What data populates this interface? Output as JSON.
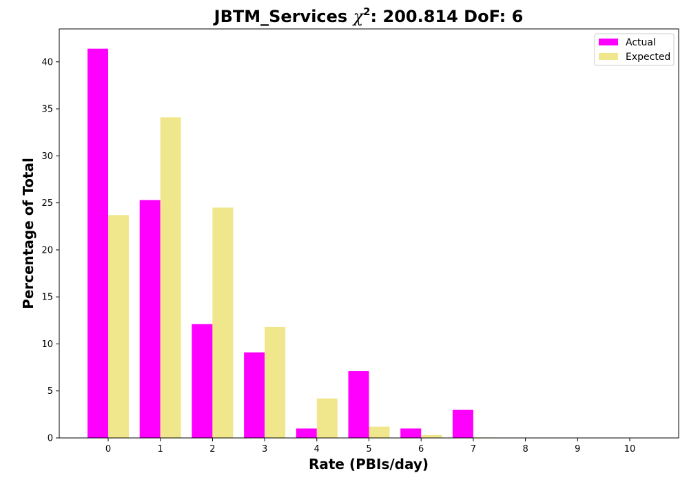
{
  "chart_data": {
    "type": "bar",
    "title": {
      "prefix": "JBTM_Services ",
      "chi": "χ",
      "sup": "2",
      "suffix": ": 200.814 DoF: 6"
    },
    "xlabel": "Rate (PBIs/day)",
    "ylabel": "Percentage of Total",
    "categories": [
      "0",
      "1",
      "2",
      "3",
      "4",
      "5",
      "6",
      "7",
      "8",
      "9",
      "10"
    ],
    "yticks": [
      0,
      5,
      10,
      15,
      20,
      25,
      30,
      35,
      40
    ],
    "ylim": [
      0,
      43.5
    ],
    "legend_position": "top-right",
    "series": [
      {
        "name": "Actual",
        "color": "#ff00ff",
        "values": [
          41.4,
          25.3,
          12.1,
          9.1,
          1.0,
          7.1,
          1.0,
          3.0,
          0,
          0,
          0
        ]
      },
      {
        "name": "Expected",
        "color": "#f0e68c",
        "values": [
          23.7,
          34.1,
          24.5,
          11.8,
          4.2,
          1.2,
          0.3,
          0.05,
          0,
          0,
          0
        ]
      }
    ]
  }
}
